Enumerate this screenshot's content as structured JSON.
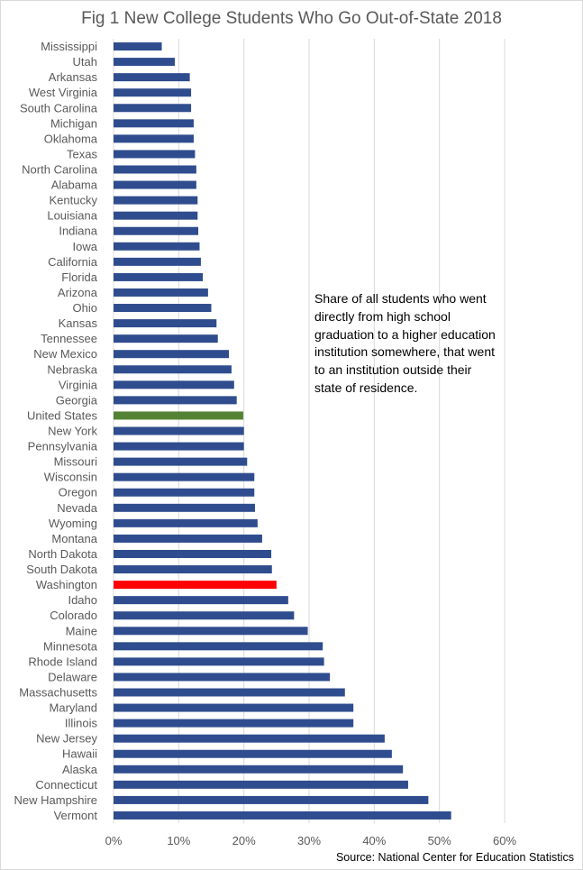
{
  "chart_data": {
    "type": "bar",
    "orientation": "horizontal",
    "title": "Fig 1 New College Students Who Go Out-of-State 2018",
    "annotation": "Share of all students who went directly from high school graduation to a higher education institution somewhere, that went to an institution outside their state of residence.",
    "source": "Source: National Center for Education Statistics",
    "xlim": [
      0,
      0.6
    ],
    "xticks": [
      0,
      0.1,
      0.2,
      0.3,
      0.4,
      0.5,
      0.6
    ],
    "xtick_labels": [
      "0%",
      "10%",
      "20%",
      "30%",
      "40%",
      "50%",
      "60%"
    ],
    "grid": "vertical",
    "colors": {
      "default": "#2f4d8e",
      "United States": "#548235",
      "Washington": "#ff0000",
      "grid": "#d9d9d9",
      "axis_text": "#595959"
    },
    "categories": [
      "Mississippi",
      "Utah",
      "Arkansas",
      "West Virginia",
      "South Carolina",
      "Michigan",
      "Oklahoma",
      "Texas",
      "North Carolina",
      "Alabama",
      "Kentucky",
      "Louisiana",
      "Indiana",
      "Iowa",
      "California",
      "Florida",
      "Arizona",
      "Ohio",
      "Kansas",
      "Tennessee",
      "New Mexico",
      "Nebraska",
      "Virginia",
      "Georgia",
      "United States",
      "New York",
      "Pennsylvania",
      "Missouri",
      "Wisconsin",
      "Oregon",
      "Nevada",
      "Wyoming",
      "Montana",
      "North Dakota",
      "South Dakota",
      "Washington",
      "Idaho",
      "Colorado",
      "Maine",
      "Minnesota",
      "Rhode Island",
      "Delaware",
      "Massachusetts",
      "Maryland",
      "Illinois",
      "New Jersey",
      "Hawaii",
      "Alaska",
      "Connecticut",
      "New Hampshire",
      "Vermont"
    ],
    "values": [
      0.074,
      0.094,
      0.117,
      0.119,
      0.119,
      0.123,
      0.123,
      0.125,
      0.127,
      0.127,
      0.129,
      0.129,
      0.13,
      0.132,
      0.134,
      0.137,
      0.145,
      0.15,
      0.158,
      0.16,
      0.177,
      0.181,
      0.185,
      0.189,
      0.199,
      0.2,
      0.2,
      0.205,
      0.216,
      0.216,
      0.217,
      0.221,
      0.228,
      0.242,
      0.243,
      0.25,
      0.268,
      0.277,
      0.298,
      0.321,
      0.323,
      0.332,
      0.355,
      0.368,
      0.368,
      0.416,
      0.427,
      0.444,
      0.452,
      0.483,
      0.518
    ]
  }
}
